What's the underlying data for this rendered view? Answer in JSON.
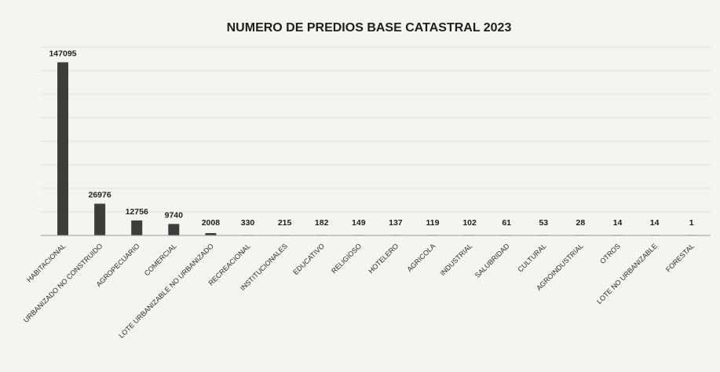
{
  "chart_data": {
    "type": "bar",
    "title": "NUMERO DE PREDIOS BASE CATASTRAL 2023",
    "categories": [
      "HABITACIONAL",
      "URBANIZADO NO CONSTRUIDO",
      "AGROPECUARIO",
      "COMERCIAL",
      "LOTE URBANIZABLE NO URBANIZADO",
      "RECREACIONAL",
      "INSTITUCIONALES",
      "EDUCATIVO",
      "RELIGIOSO",
      "HOTELERO",
      "AGRICOLA",
      "INDUSTRIAL",
      "SALUBRIDAD",
      "CULTURAL",
      "AGROINDUSTRIAL",
      "OTROS",
      "LOTE NO URBANIZABLE",
      "FORESTAL"
    ],
    "values": [
      147095,
      26976,
      12756,
      9740,
      2008,
      330,
      215,
      182,
      149,
      137,
      119,
      102,
      61,
      53,
      28,
      14,
      14,
      1
    ],
    "data_labels": [
      "147095",
      "26976",
      "12756",
      "9740",
      "2008",
      "330",
      "215",
      "182",
      "149",
      "137",
      "119",
      "102",
      "61",
      "53",
      "28",
      "14",
      "14",
      "1"
    ],
    "xlabel": "",
    "ylabel": "",
    "ylim": [
      0,
      160000
    ],
    "grid": true,
    "legend": "none",
    "colors": {
      "bar": "#3d3d3d",
      "background": "#f4f4f2"
    }
  }
}
